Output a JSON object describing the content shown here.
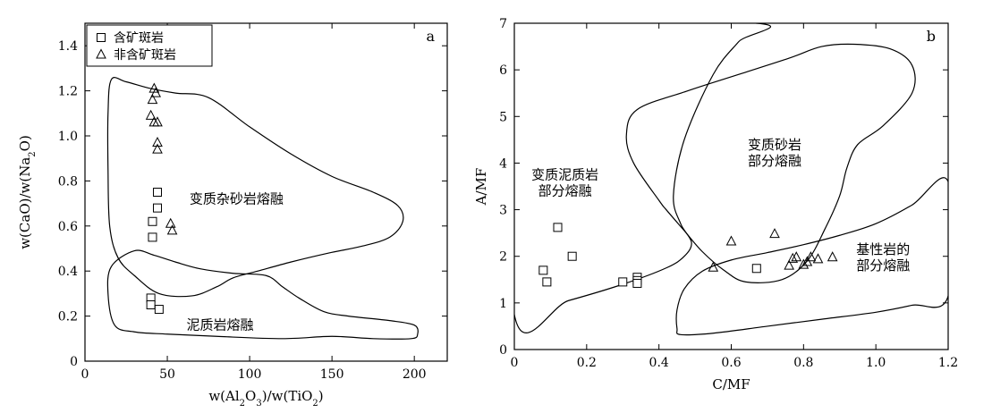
{
  "chart_data": [
    {
      "type": "scatter",
      "panel_label": "a",
      "xlabel_parts": [
        "w(Al",
        "2",
        "O",
        "3",
        ")/w(TiO",
        "2",
        ")"
      ],
      "ylabel_parts": [
        "w(CaO)/w(Na",
        "2",
        "O)"
      ],
      "xlim": [
        0,
        220
      ],
      "ylim": [
        0,
        1.5
      ],
      "xticks": [
        0,
        50,
        100,
        150,
        200
      ],
      "yticks": [
        0,
        0.2,
        0.4,
        0.6,
        0.8,
        1.0,
        1.2,
        1.4
      ],
      "ytick_labels": [
        "0",
        "0.2",
        "0.4",
        "0.6",
        "0.8",
        "1.0",
        "1.2",
        "1.4"
      ],
      "legend": [
        "含矿斑岩",
        "非含矿斑岩"
      ],
      "series": [
        {
          "name": "含矿斑岩",
          "marker": "square",
          "points": [
            [
              44,
              0.75
            ],
            [
              44,
              0.68
            ],
            [
              41,
              0.62
            ],
            [
              41,
              0.55
            ],
            [
              40,
              0.28
            ],
            [
              40,
              0.25
            ],
            [
              45,
              0.23
            ]
          ]
        },
        {
          "name": "非含矿斑岩",
          "marker": "triangle",
          "points": [
            [
              42,
              1.21
            ],
            [
              43,
              1.19
            ],
            [
              41,
              1.16
            ],
            [
              40,
              1.09
            ],
            [
              42,
              1.06
            ],
            [
              44,
              1.06
            ],
            [
              44,
              0.97
            ],
            [
              44,
              0.94
            ],
            [
              52,
              0.61
            ],
            [
              53,
              0.58
            ]
          ]
        }
      ],
      "fields": [
        {
          "label": [
            "变质杂砂岩熔融"
          ],
          "label_at": [
            92,
            0.7
          ],
          "polygon": [
            [
              16,
              1.25
            ],
            [
              25,
              1.24
            ],
            [
              40,
              1.21
            ],
            [
              55,
              1.19
            ],
            [
              75,
              1.17
            ],
            [
              100,
              1.04
            ],
            [
              125,
              0.92
            ],
            [
              150,
              0.82
            ],
            [
              175,
              0.75
            ],
            [
              190,
              0.69
            ],
            [
              193,
              0.62
            ],
            [
              185,
              0.55
            ],
            [
              168,
              0.51
            ],
            [
              148,
              0.48
            ],
            [
              125,
              0.44
            ],
            [
              105,
              0.4
            ],
            [
              90,
              0.37
            ],
            [
              80,
              0.33
            ],
            [
              65,
              0.29
            ],
            [
              45,
              0.3
            ],
            [
              30,
              0.38
            ],
            [
              20,
              0.46
            ],
            [
              15,
              0.6
            ],
            [
              14,
              0.85
            ],
            [
              14,
              1.1
            ]
          ]
        },
        {
          "label": [
            "泥质岩熔融"
          ],
          "label_at": [
            82,
            0.14
          ],
          "polygon": [
            [
              30,
              0.49
            ],
            [
              42,
              0.47
            ],
            [
              55,
              0.44
            ],
            [
              70,
              0.41
            ],
            [
              90,
              0.39
            ],
            [
              110,
              0.38
            ],
            [
              120,
              0.33
            ],
            [
              130,
              0.28
            ],
            [
              145,
              0.22
            ],
            [
              160,
              0.2
            ],
            [
              185,
              0.18
            ],
            [
              200,
              0.16
            ],
            [
              202,
              0.12
            ],
            [
              198,
              0.1
            ],
            [
              175,
              0.1
            ],
            [
              150,
              0.11
            ],
            [
              120,
              0.1
            ],
            [
              80,
              0.11
            ],
            [
              50,
              0.12
            ],
            [
              30,
              0.13
            ],
            [
              18,
              0.16
            ],
            [
              14,
              0.3
            ],
            [
              16,
              0.42
            ]
          ]
        }
      ]
    },
    {
      "type": "scatter",
      "panel_label": "b",
      "xlabel": "C/MF",
      "ylabel": "A/MF",
      "xlim": [
        0,
        1.2
      ],
      "ylim": [
        0,
        7
      ],
      "xticks": [
        0,
        0.2,
        0.4,
        0.6,
        0.8,
        1.0,
        1.2
      ],
      "xtick_labels": [
        "0",
        "0.2",
        "0.4",
        "0.6",
        "0.8",
        "1.0",
        "1.2"
      ],
      "yticks": [
        0,
        1,
        2,
        3,
        4,
        5,
        6,
        7
      ],
      "series": [
        {
          "name": "含矿斑岩",
          "marker": "square",
          "points": [
            [
              0.08,
              1.7
            ],
            [
              0.09,
              1.45
            ],
            [
              0.12,
              2.62
            ],
            [
              0.16,
              2.0
            ],
            [
              0.3,
              1.45
            ],
            [
              0.34,
              1.55
            ],
            [
              0.34,
              1.48
            ],
            [
              0.34,
              1.42
            ],
            [
              0.67,
              1.74
            ]
          ]
        },
        {
          "name": "非含矿斑岩",
          "marker": "triangle",
          "points": [
            [
              0.55,
              1.76
            ],
            [
              0.6,
              2.32
            ],
            [
              0.72,
              2.48
            ],
            [
              0.76,
              1.8
            ],
            [
              0.77,
              1.95
            ],
            [
              0.78,
              1.98
            ],
            [
              0.8,
              1.82
            ],
            [
              0.81,
              1.88
            ],
            [
              0.82,
              1.98
            ],
            [
              0.84,
              1.94
            ],
            [
              0.88,
              1.98
            ]
          ]
        }
      ],
      "fields": [
        {
          "label": [
            "变质泥质岩",
            "部分熔融"
          ],
          "label_at": [
            0.14,
            3.65
          ],
          "polygon": [
            [
              0,
              0.75
            ],
            [
              0.15,
              1.05
            ],
            [
              0.3,
              1.4
            ],
            [
              0.42,
              1.75
            ],
            [
              0.47,
              2.0
            ],
            [
              0.49,
              2.3
            ],
            [
              0.46,
              2.7
            ],
            [
              0.44,
              3.3
            ],
            [
              0.47,
              4.5
            ],
            [
              0.55,
              5.9
            ],
            [
              0.62,
              6.6
            ],
            [
              0.67,
              7.0
            ],
            [
              0,
              7.0
            ]
          ]
        },
        {
          "label": [
            "变质砂岩",
            "部分熔融"
          ],
          "label_at": [
            0.72,
            4.3
          ],
          "polygon": [
            [
              0.34,
              5.15
            ],
            [
              0.48,
              5.55
            ],
            [
              0.62,
              5.9
            ],
            [
              0.76,
              6.25
            ],
            [
              0.85,
              6.5
            ],
            [
              0.94,
              6.55
            ],
            [
              1.04,
              6.45
            ],
            [
              1.1,
              6.1
            ],
            [
              1.1,
              5.5
            ],
            [
              1.02,
              4.8
            ],
            [
              0.95,
              4.4
            ],
            [
              0.92,
              3.9
            ],
            [
              0.9,
              3.3
            ],
            [
              0.86,
              2.6
            ],
            [
              0.81,
              1.9
            ],
            [
              0.74,
              1.5
            ],
            [
              0.64,
              1.45
            ],
            [
              0.58,
              1.7
            ],
            [
              0.52,
              2.1
            ],
            [
              0.47,
              2.55
            ],
            [
              0.42,
              3.0
            ],
            [
              0.4,
              3.2
            ],
            [
              0.33,
              4.0
            ],
            [
              0.31,
              4.6
            ]
          ]
        },
        {
          "label": [
            "基性岩的",
            "部分熔融"
          ],
          "label_at": [
            1.02,
            2.05
          ],
          "polygon": [
            [
              0.46,
              0.32
            ],
            [
              0.55,
              0.35
            ],
            [
              0.7,
              0.5
            ],
            [
              0.85,
              0.65
            ],
            [
              1.0,
              0.8
            ],
            [
              1.1,
              0.95
            ],
            [
              1.2,
              1.15
            ],
            [
              1.2,
              3.6
            ],
            [
              1.1,
              3.1
            ],
            [
              1.0,
              2.7
            ],
            [
              0.9,
              2.45
            ],
            [
              0.8,
              2.25
            ],
            [
              0.7,
              2.08
            ],
            [
              0.6,
              1.92
            ],
            [
              0.52,
              1.68
            ],
            [
              0.47,
              1.3
            ],
            [
              0.45,
              0.85
            ],
            [
              0.45,
              0.45
            ]
          ]
        }
      ]
    }
  ]
}
